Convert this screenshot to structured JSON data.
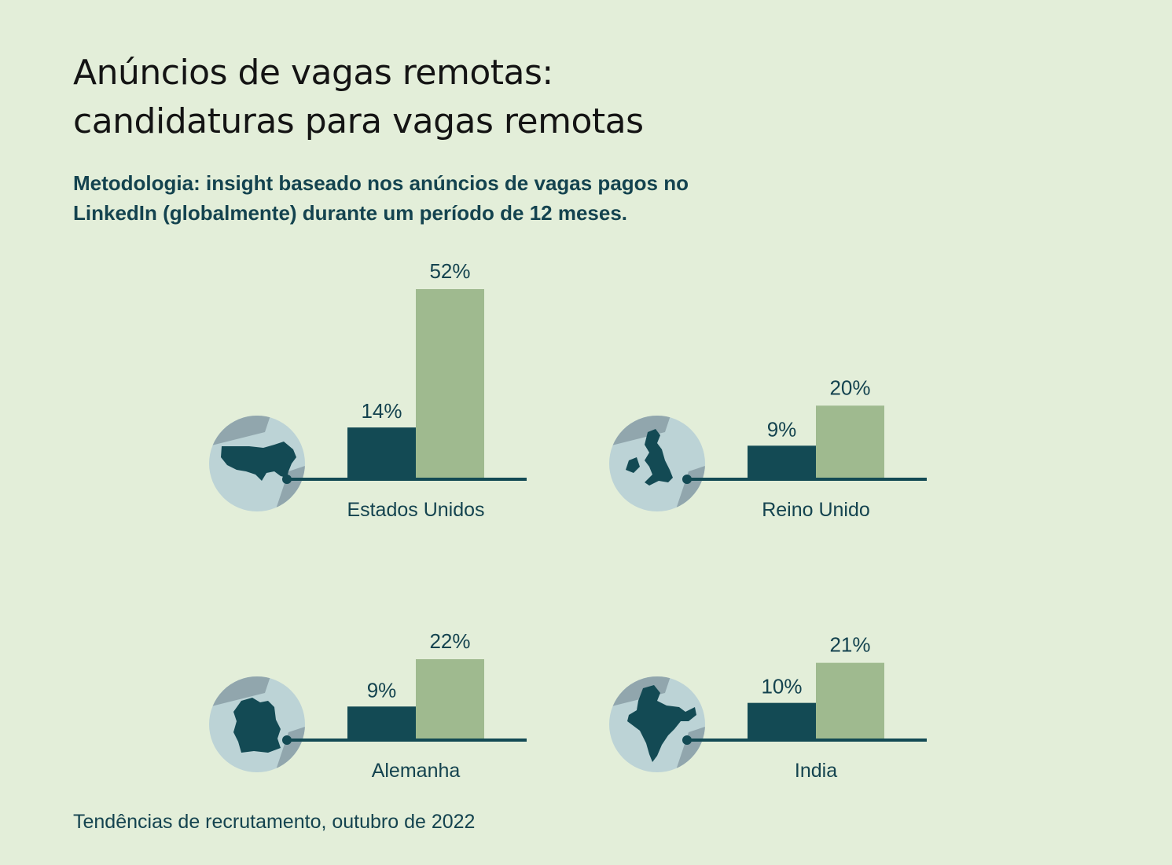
{
  "title_lines": [
    "Anúncios de vagas remotas:",
    "candidaturas para vagas remotas"
  ],
  "subtitle_lines": [
    "Metodologia: insight baseado nos anúncios de vagas pagos no",
    "LinkedIn (globalmente) durante um período de 12 meses."
  ],
  "footer": "Tendências de recrutamento, outubro de 2022",
  "colors": {
    "background": "#e3eed9",
    "dark_bar": "#134a54",
    "light_bar": "#9fba8f",
    "globe_sea": "#bcd3d6",
    "globe_land": "#91a6ad"
  },
  "chart_data": [
    {
      "type": "bar",
      "category": "Estados Unidos",
      "icon": "globe-usa-icon",
      "values": [
        14,
        52
      ],
      "value_labels": [
        "14%",
        "52%"
      ]
    },
    {
      "type": "bar",
      "category": "Reino Unido",
      "icon": "globe-uk-icon",
      "values": [
        9,
        20
      ],
      "value_labels": [
        "9%",
        "20%"
      ]
    },
    {
      "type": "bar",
      "category": "Alemanha",
      "icon": "globe-germany-icon",
      "values": [
        9,
        22
      ],
      "value_labels": [
        "9%",
        "22%"
      ]
    },
    {
      "type": "bar",
      "category": "India",
      "icon": "globe-india-icon",
      "values": [
        10,
        21
      ],
      "value_labels": [
        "10%",
        "21%"
      ]
    }
  ]
}
